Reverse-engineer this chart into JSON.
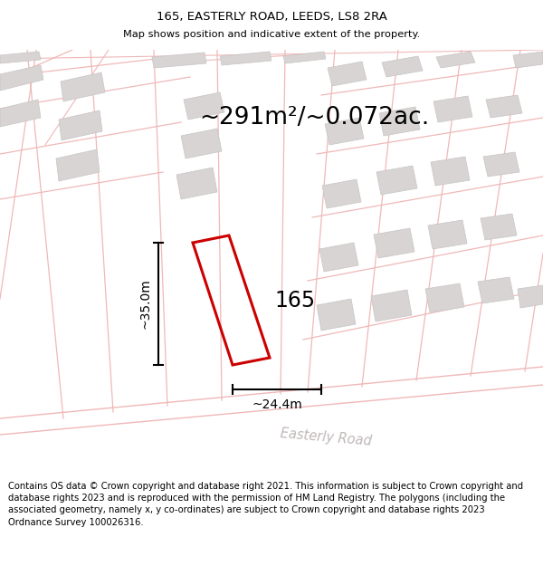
{
  "title_line1": "165, EASTERLY ROAD, LEEDS, LS8 2RA",
  "title_line2": "Map shows position and indicative extent of the property.",
  "area_text": "~291m²/~0.072ac.",
  "dim_width": "~24.4m",
  "dim_height": "~35.0m",
  "label_165": "165",
  "road_label": "Easterly Road",
  "footer_text": "Contains OS data © Crown copyright and database right 2021. This information is subject to Crown copyright and database rights 2023 and is reproduced with the permission of HM Land Registry. The polygons (including the associated geometry, namely x, y co-ordinates) are subject to Crown copyright and database rights 2023 Ordnance Survey 100026316.",
  "bg_color": "#f8f5f5",
  "plot_outline_color": "#cc0000",
  "road_line_color": "#f0b8b8",
  "gray_building": "#d8d4d4",
  "title_fontsize": 9.5,
  "area_fontsize": 19,
  "footer_fontsize": 7.2,
  "road_label_color": "#c0b8b8"
}
